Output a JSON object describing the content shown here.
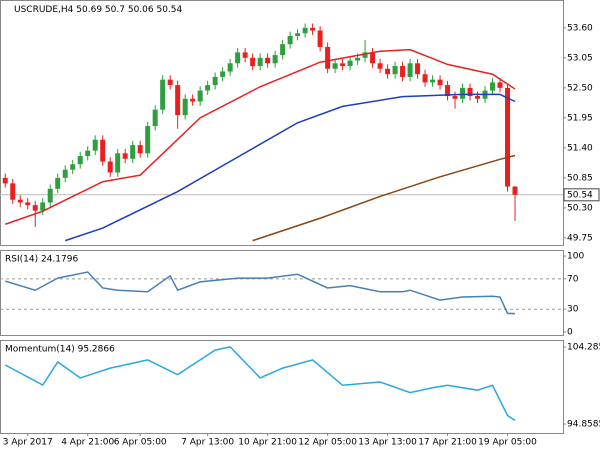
{
  "chart_data": [
    {
      "type": "candlestick",
      "title": "USCRUDE,H4",
      "xlim": [
        -0.7,
        74.4
      ],
      "ylim": [
        49.62,
        54.11
      ],
      "yticks": [
        {
          "value": 53.6,
          "label": "53.60"
        },
        53.05,
        {
          "value": 52.5,
          "label": "52.50"
        },
        51.95,
        {
          "value": 51.4,
          "label": "51.40"
        },
        50.85,
        {
          "value": 50.3,
          "label": "50.30"
        },
        49.75
      ],
      "up_color": "#2e9e3e",
      "down_color": "#e8201e",
      "open": [
        50.85,
        50.75,
        50.45,
        50.4,
        50.35,
        50.25,
        50.4,
        50.65,
        50.85,
        51.0,
        51.1,
        51.25,
        51.35,
        51.55,
        51.15,
        50.95,
        51.3,
        51.2,
        51.45,
        51.3,
        51.8,
        52.1,
        52.65,
        52.55,
        52.0,
        52.3,
        52.25,
        52.45,
        52.55,
        52.7,
        52.8,
        52.95,
        53.15,
        53.05,
        52.9,
        53.05,
        52.95,
        53.1,
        53.3,
        53.45,
        53.5,
        53.6,
        53.55,
        53.25,
        52.85,
        52.95,
        52.9,
        53.0,
        53.05,
        53.15,
        52.95,
        52.85,
        52.75,
        52.9,
        52.7,
        52.95,
        52.75,
        52.6,
        52.65,
        52.55,
        52.35,
        52.3,
        52.5,
        52.35,
        52.3,
        52.45,
        52.6,
        52.5,
        50.69
      ],
      "high": [
        50.93,
        50.83,
        50.53,
        50.48,
        50.43,
        50.48,
        50.73,
        50.93,
        51.08,
        51.18,
        51.33,
        51.43,
        51.63,
        51.63,
        51.23,
        51.38,
        51.38,
        51.53,
        51.53,
        51.88,
        52.18,
        52.73,
        52.73,
        52.63,
        52.38,
        52.38,
        52.53,
        52.63,
        52.78,
        52.88,
        53.03,
        53.23,
        53.23,
        53.13,
        53.13,
        53.13,
        53.18,
        53.38,
        53.53,
        53.58,
        53.68,
        53.68,
        53.63,
        53.33,
        53.03,
        53.03,
        53.08,
        53.13,
        53.38,
        53.23,
        53.03,
        52.93,
        52.98,
        52.98,
        53.03,
        53.03,
        52.83,
        52.73,
        52.73,
        52.63,
        52.43,
        52.58,
        52.58,
        52.43,
        52.53,
        52.68,
        52.68,
        52.58,
        50.7
      ],
      "low": [
        50.67,
        50.37,
        50.32,
        50.27,
        49.95,
        50.17,
        50.32,
        50.57,
        50.77,
        50.92,
        51.02,
        51.17,
        51.27,
        51.07,
        50.87,
        50.87,
        51.12,
        51.12,
        51.22,
        51.22,
        51.72,
        52.02,
        52.47,
        51.75,
        51.92,
        52.17,
        52.17,
        52.37,
        52.47,
        52.62,
        52.72,
        52.87,
        52.97,
        52.82,
        52.82,
        52.87,
        52.87,
        53.02,
        53.22,
        53.37,
        53.42,
        53.47,
        53.17,
        52.77,
        52.77,
        52.82,
        52.82,
        52.92,
        52.97,
        52.87,
        52.77,
        52.67,
        52.67,
        52.62,
        52.62,
        52.67,
        52.52,
        52.52,
        52.47,
        52.27,
        52.12,
        52.22,
        52.27,
        52.22,
        52.22,
        52.37,
        52.42,
        50.6,
        50.06
      ],
      "close": [
        50.75,
        50.45,
        50.4,
        50.35,
        50.25,
        50.4,
        50.65,
        50.85,
        51.0,
        51.1,
        51.25,
        51.35,
        51.55,
        51.15,
        50.95,
        51.3,
        51.2,
        51.45,
        51.3,
        51.8,
        52.1,
        52.65,
        52.55,
        52.0,
        52.3,
        52.25,
        52.45,
        52.55,
        52.7,
        52.8,
        52.95,
        53.15,
        53.05,
        52.9,
        53.05,
        52.95,
        53.1,
        53.3,
        53.45,
        53.5,
        53.6,
        53.55,
        53.25,
        52.85,
        52.95,
        52.9,
        53.0,
        53.05,
        53.15,
        52.95,
        52.85,
        52.75,
        52.9,
        52.7,
        52.95,
        52.75,
        52.6,
        52.65,
        52.55,
        52.35,
        52.3,
        52.5,
        52.35,
        52.3,
        52.45,
        52.6,
        52.5,
        50.69,
        50.54
      ],
      "lines": [
        {
          "color": "#e8201e",
          "x": [
            0,
            5,
            13,
            18,
            26,
            34,
            42,
            50,
            54,
            59,
            65,
            68
          ],
          "values": [
            50.0,
            50.24,
            50.78,
            50.9,
            51.95,
            52.52,
            52.97,
            53.17,
            53.2,
            52.93,
            52.75,
            52.48
          ]
        },
        {
          "color": "#1c3fc0",
          "x": [
            8,
            13,
            23,
            31,
            39,
            45,
            53,
            61,
            66,
            68
          ],
          "values": [
            49.7,
            49.93,
            50.6,
            51.23,
            51.86,
            52.16,
            52.34,
            52.38,
            52.38,
            52.25
          ]
        },
        {
          "color": "#8b4513",
          "x": [
            33,
            42,
            50,
            58,
            66,
            68
          ],
          "values": [
            49.7,
            50.11,
            50.51,
            50.87,
            51.19,
            51.26
          ]
        }
      ]
    },
    {
      "type": "line",
      "title": "RSI(14) 24.1796",
      "color": "#4a7fb5",
      "xlim": [
        -0.7,
        74.4
      ],
      "ylim": [
        -4,
        108
      ],
      "yticks": [
        100,
        70,
        30,
        0
      ],
      "levels": [
        70,
        30
      ],
      "x": [
        0,
        4,
        7,
        11,
        13,
        15,
        19,
        22,
        23,
        26,
        31,
        35,
        39,
        43,
        46,
        50,
        53,
        54,
        58,
        61,
        65,
        66,
        67,
        68
      ],
      "values": [
        67,
        55,
        71,
        79,
        58,
        55,
        53,
        74,
        55,
        66,
        71,
        71,
        76,
        58,
        61,
        53,
        53,
        55,
        42,
        46,
        47,
        46,
        24.5,
        24.18
      ]
    },
    {
      "type": "line",
      "title": "Momentum(14) 95.2866",
      "color": "#29a8e0",
      "xlim": [
        -0.7,
        74.4
      ],
      "ylim": [
        93.76,
        105.14
      ],
      "yticks": [
        104.2853,
        94.8585
      ],
      "x": [
        0,
        5,
        7,
        10,
        14,
        19,
        23,
        28,
        30,
        34,
        37,
        41,
        45,
        50,
        54,
        57,
        59,
        63,
        65,
        67,
        68
      ],
      "values": [
        102.08,
        99.63,
        102.45,
        100.5,
        101.7,
        102.7,
        100.9,
        103.9,
        104.3,
        100.5,
        101.7,
        102.7,
        99.6,
        100.0,
        98.7,
        99.3,
        99.6,
        99.0,
        99.6,
        95.9,
        95.2866
      ],
      "xticks": [
        {
          "value": 3,
          "label": "3 Apr 2017"
        },
        {
          "value": 11,
          "label": "4 Apr 21:00"
        },
        {
          "value": 18,
          "label": "6 Apr 05:00"
        },
        {
          "value": 27,
          "label": "7 Apr 13:00"
        },
        {
          "value": 35,
          "label": "10 Apr 21:00"
        },
        {
          "value": 43,
          "label": "12 Apr 05:00"
        },
        {
          "value": 51,
          "label": "13 Apr 13:00"
        },
        {
          "value": 59,
          "label": "17 Apr 21:00"
        },
        {
          "value": 67,
          "label": "19 Apr 05:00"
        }
      ]
    }
  ]
}
